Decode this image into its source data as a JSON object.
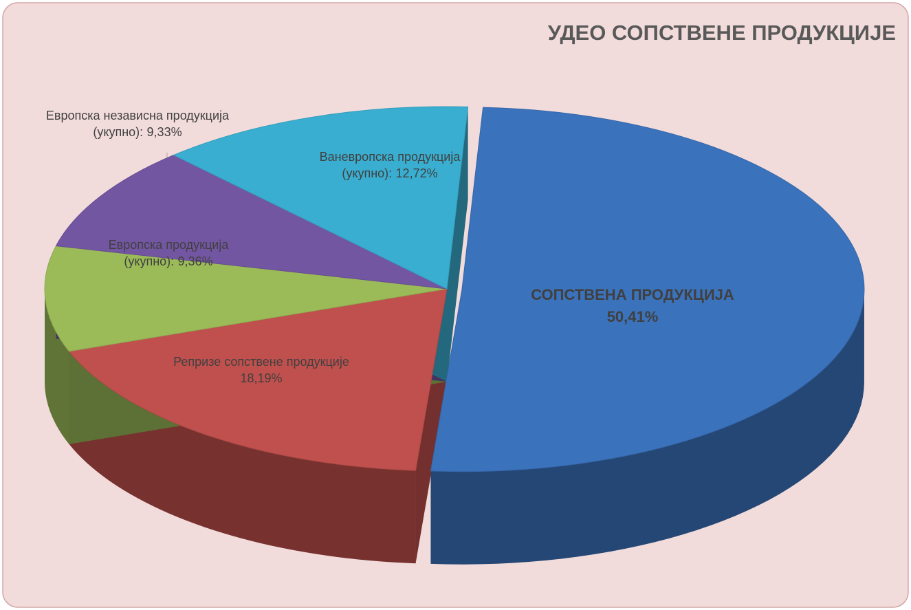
{
  "chart_data": {
    "type": "pie3d",
    "title": "УДЕО СОПСТВЕНЕ ПРОДУКЦИЈЕ",
    "categories": [
      "СОПСТВЕНА ПРОДУКЦИЈА",
      "Репризе сопствене продукције",
      "Европска продукција (укупно):",
      "Европска независна продукција (укупно):",
      "Ваневропска продукција (укупно):"
    ],
    "values": [
      50.41,
      18.19,
      9.36,
      9.33,
      12.72
    ],
    "value_labels": [
      "50,41%",
      "18,19%",
      "9,36%",
      "9,33%",
      "12,72%"
    ],
    "colors": [
      "#3b72bc",
      "#c0504d",
      "#9bbb59",
      "#7356a2",
      "#3aaed0"
    ]
  }
}
